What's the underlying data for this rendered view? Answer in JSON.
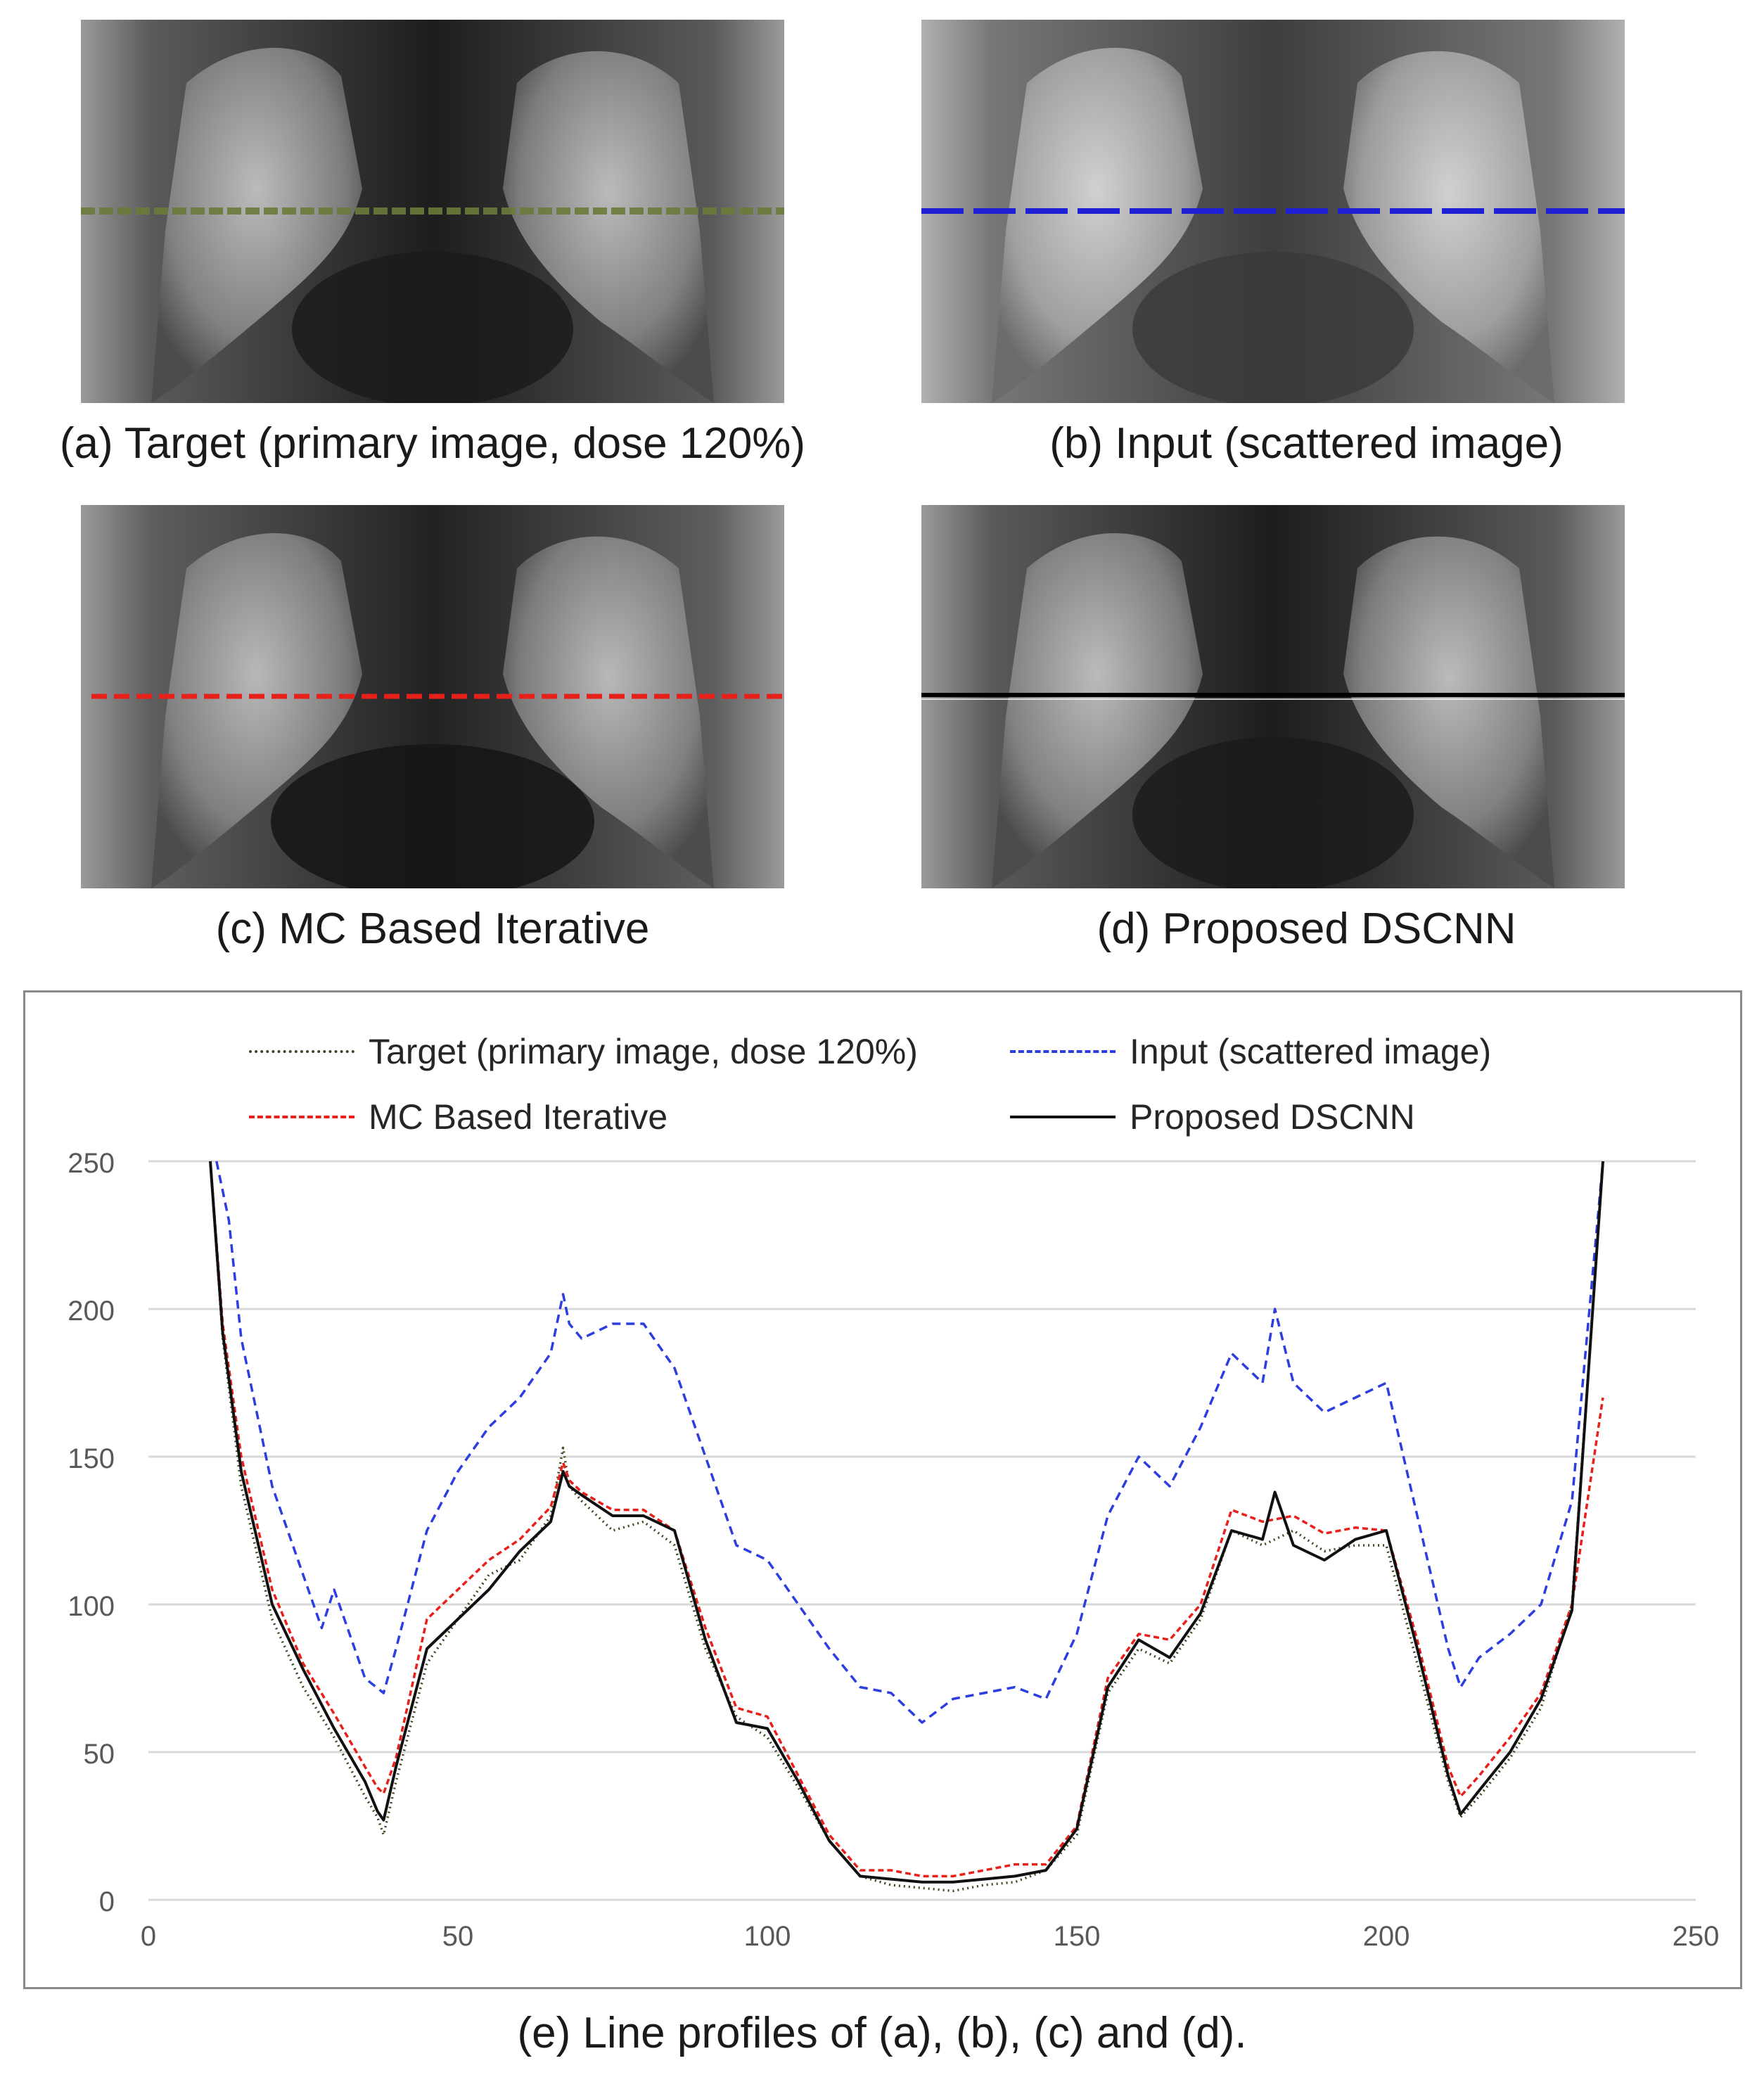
{
  "panels": {
    "a": {
      "caption": "(a) Target (primary image, dose 120%)",
      "line_color": "#6b7b3a",
      "line_style": "dashed"
    },
    "b": {
      "caption": "(b) Input (scattered image)",
      "line_color": "#1f1fd6",
      "line_style": "long-dash"
    },
    "c": {
      "caption": "(c) MC Based Iterative",
      "line_color": "#e8201a",
      "line_style": "dashed"
    },
    "d": {
      "caption": "(d) Proposed DSCNN",
      "line_color": "#000000",
      "line_style": "solid"
    }
  },
  "figure_caption": "(e) Line profiles of (a), (b), (c) and (d).",
  "chart_data": {
    "type": "line",
    "title": "",
    "xlabel": "",
    "ylabel": "",
    "xlim": [
      0,
      250
    ],
    "ylim": [
      0,
      250
    ],
    "x_ticks": [
      0,
      50,
      100,
      150,
      200,
      250
    ],
    "y_ticks": [
      0,
      50,
      100,
      150,
      200,
      250
    ],
    "grid": "horizontal",
    "legend_position": "top",
    "series": [
      {
        "name": "Target (primary image, dose 120%)",
        "color": "#3d4a1f",
        "dash": "dotted",
        "x": [
          10,
          12,
          15,
          20,
          25,
          30,
          35,
          37,
          38,
          40,
          45,
          50,
          55,
          60,
          65,
          67,
          68,
          70,
          75,
          80,
          85,
          90,
          95,
          100,
          105,
          110,
          115,
          120,
          125,
          130,
          135,
          140,
          145,
          150,
          155,
          160,
          165,
          170,
          175,
          180,
          185,
          190,
          195,
          200,
          205,
          210,
          212,
          215,
          220,
          225,
          230,
          235
        ],
        "y": [
          250,
          190,
          140,
          95,
          72,
          55,
          35,
          28,
          22,
          40,
          80,
          95,
          110,
          115,
          130,
          153,
          140,
          135,
          125,
          128,
          120,
          85,
          62,
          55,
          38,
          20,
          8,
          5,
          4,
          3,
          5,
          6,
          10,
          22,
          70,
          85,
          80,
          95,
          125,
          120,
          125,
          118,
          120,
          120,
          80,
          40,
          28,
          35,
          48,
          65,
          100,
          250
        ]
      },
      {
        "name": "Input (scattered image)",
        "color": "#2d3ee0",
        "dash": "dashed",
        "x": [
          11,
          13,
          15,
          20,
          25,
          28,
          30,
          35,
          38,
          40,
          45,
          50,
          55,
          60,
          65,
          67,
          68,
          70,
          75,
          80,
          85,
          90,
          95,
          100,
          105,
          110,
          115,
          120,
          125,
          130,
          135,
          140,
          145,
          150,
          155,
          160,
          165,
          170,
          175,
          180,
          182,
          185,
          190,
          195,
          200,
          205,
          210,
          212,
          215,
          220,
          225,
          230,
          235
        ],
        "y": [
          250,
          230,
          190,
          140,
          110,
          92,
          105,
          75,
          70,
          85,
          125,
          145,
          160,
          170,
          185,
          205,
          195,
          190,
          195,
          195,
          180,
          150,
          120,
          115,
          100,
          85,
          72,
          70,
          60,
          68,
          70,
          72,
          68,
          90,
          130,
          150,
          140,
          160,
          185,
          175,
          200,
          175,
          165,
          170,
          175,
          130,
          85,
          72,
          82,
          90,
          100,
          135,
          250
        ]
      },
      {
        "name": "MC Based Iterative",
        "color": "#e8201a",
        "dash": "short-dash",
        "x": [
          10,
          12,
          15,
          20,
          25,
          30,
          35,
          37,
          38,
          40,
          45,
          50,
          55,
          60,
          65,
          67,
          68,
          70,
          75,
          80,
          85,
          90,
          95,
          100,
          105,
          110,
          115,
          120,
          125,
          130,
          135,
          140,
          145,
          150,
          155,
          160,
          165,
          170,
          175,
          180,
          185,
          190,
          195,
          200,
          205,
          210,
          212,
          215,
          220,
          225,
          230,
          235
        ],
        "y": [
          250,
          195,
          150,
          105,
          80,
          63,
          45,
          38,
          36,
          48,
          95,
          105,
          115,
          122,
          133,
          148,
          142,
          138,
          132,
          132,
          125,
          92,
          65,
          62,
          42,
          22,
          10,
          10,
          8,
          8,
          10,
          12,
          12,
          25,
          75,
          90,
          88,
          100,
          132,
          128,
          130,
          124,
          126,
          125,
          88,
          45,
          35,
          42,
          55,
          70,
          100,
          170
        ]
      },
      {
        "name": "Proposed DSCNN",
        "color": "#111111",
        "dash": "solid",
        "x": [
          10,
          12,
          15,
          20,
          25,
          30,
          35,
          37,
          38,
          40,
          45,
          50,
          55,
          60,
          65,
          67,
          68,
          70,
          75,
          80,
          85,
          90,
          95,
          100,
          105,
          110,
          115,
          120,
          125,
          130,
          135,
          140,
          145,
          150,
          155,
          160,
          165,
          170,
          175,
          180,
          182,
          185,
          190,
          195,
          200,
          205,
          210,
          212,
          215,
          220,
          225,
          230,
          235
        ],
        "y": [
          250,
          192,
          145,
          100,
          78,
          58,
          40,
          30,
          27,
          45,
          85,
          95,
          105,
          118,
          128,
          145,
          140,
          137,
          130,
          130,
          125,
          88,
          60,
          58,
          40,
          20,
          8,
          7,
          6,
          6,
          7,
          8,
          10,
          24,
          72,
          88,
          82,
          97,
          125,
          122,
          138,
          120,
          115,
          122,
          125,
          85,
          42,
          29,
          37,
          50,
          68,
          98,
          250
        ]
      }
    ],
    "legend": [
      "Target (primary image, dose 120%)",
      "Input (scattered image)",
      "MC Based Iterative",
      "Proposed DSCNN"
    ]
  }
}
